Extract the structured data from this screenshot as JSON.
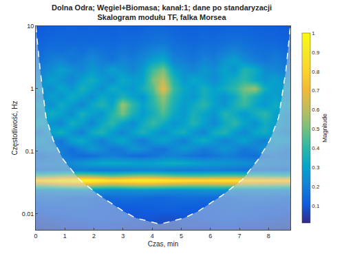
{
  "chart_data": {
    "type": "heatmap",
    "title": "Dolna Odra; Węgiel+Biomasa; kanał:1; dane po standaryzacji",
    "subtitle": "Skalogram modułu TF, falka Morsea",
    "x_label": "Czas, min",
    "y_label": "Częstotliwość, Hz",
    "log": "y",
    "grid": false,
    "xlim": [
      0,
      8.75
    ],
    "xticks": [
      0,
      1,
      2,
      3,
      4,
      5,
      6,
      7,
      8
    ],
    "ylim": [
      0.0055,
      10
    ],
    "yticks": [
      0.01,
      0.1,
      1,
      10
    ],
    "x": [
      0.175,
      0.525,
      0.875,
      1.225,
      1.575,
      1.925,
      2.275,
      2.625,
      2.975,
      3.325,
      3.675,
      4.025,
      4.375,
      4.725,
      5.075,
      5.425,
      5.775,
      6.125,
      6.475,
      6.825,
      7.175,
      7.525,
      7.875,
      8.225,
      8.575
    ],
    "y": [
      0.006,
      0.009,
      0.013,
      0.018,
      0.024,
      0.029,
      0.034,
      0.04,
      0.05,
      0.065,
      0.085,
      0.11,
      0.15,
      0.2,
      0.28,
      0.4,
      0.55,
      0.75,
      1,
      1.4,
      2,
      2.8,
      4,
      5.6,
      9.5
    ],
    "cells": [
      [
        0.07,
        0.07,
        0.08,
        0.08,
        0.08,
        0.09,
        0.09,
        0.09,
        0.08,
        0.08,
        0.08,
        0.07,
        0.07,
        0.07,
        0.08,
        0.08,
        0.08,
        0.09,
        0.09,
        0.09,
        0.08,
        0.08,
        0.08,
        0.07,
        0.07
      ],
      [
        0.09,
        0.1,
        0.1,
        0.11,
        0.11,
        0.12,
        0.12,
        0.11,
        0.11,
        0.1,
        0.1,
        0.1,
        0.09,
        0.09,
        0.1,
        0.1,
        0.11,
        0.11,
        0.12,
        0.12,
        0.11,
        0.11,
        0.1,
        0.1,
        0.09
      ],
      [
        0.12,
        0.13,
        0.13,
        0.14,
        0.14,
        0.13,
        0.12,
        0.12,
        0.11,
        0.11,
        0.12,
        0.12,
        0.13,
        0.13,
        0.12,
        0.12,
        0.11,
        0.12,
        0.13,
        0.14,
        0.14,
        0.13,
        0.13,
        0.12,
        0.12
      ],
      [
        0.16,
        0.17,
        0.16,
        0.15,
        0.15,
        0.14,
        0.14,
        0.15,
        0.16,
        0.16,
        0.15,
        0.14,
        0.14,
        0.15,
        0.16,
        0.16,
        0.15,
        0.15,
        0.14,
        0.15,
        0.16,
        0.17,
        0.16,
        0.16,
        0.15
      ],
      [
        0.24,
        0.25,
        0.26,
        0.27,
        0.27,
        0.26,
        0.25,
        0.24,
        0.24,
        0.25,
        0.26,
        0.26,
        0.25,
        0.24,
        0.24,
        0.25,
        0.26,
        0.26,
        0.25,
        0.24,
        0.24,
        0.25,
        0.25,
        0.24,
        0.24
      ],
      [
        0.55,
        0.58,
        0.62,
        0.64,
        0.65,
        0.63,
        0.6,
        0.58,
        0.6,
        0.62,
        0.63,
        0.62,
        0.6,
        0.58,
        0.57,
        0.56,
        0.56,
        0.57,
        0.58,
        0.58,
        0.57,
        0.56,
        0.55,
        0.54,
        0.53
      ],
      [
        0.86,
        0.9,
        0.95,
        0.98,
        1.0,
        0.98,
        0.93,
        0.88,
        0.9,
        0.93,
        0.95,
        0.94,
        0.92,
        0.9,
        0.88,
        0.87,
        0.86,
        0.87,
        0.88,
        0.88,
        0.87,
        0.86,
        0.85,
        0.84,
        0.83
      ],
      [
        0.5,
        0.52,
        0.55,
        0.57,
        0.58,
        0.56,
        0.53,
        0.5,
        0.52,
        0.55,
        0.56,
        0.55,
        0.53,
        0.5,
        0.49,
        0.48,
        0.48,
        0.49,
        0.5,
        0.5,
        0.49,
        0.48,
        0.47,
        0.46,
        0.45
      ],
      [
        0.17,
        0.18,
        0.19,
        0.2,
        0.2,
        0.19,
        0.18,
        0.18,
        0.19,
        0.2,
        0.21,
        0.21,
        0.2,
        0.19,
        0.18,
        0.18,
        0.19,
        0.19,
        0.18,
        0.18,
        0.17,
        0.17,
        0.17,
        0.16,
        0.16
      ],
      [
        0.2,
        0.21,
        0.22,
        0.24,
        0.27,
        0.3,
        0.32,
        0.33,
        0.32,
        0.31,
        0.3,
        0.31,
        0.33,
        0.34,
        0.33,
        0.31,
        0.29,
        0.28,
        0.27,
        0.26,
        0.25,
        0.24,
        0.23,
        0.22,
        0.21
      ],
      [
        0.16,
        0.18,
        0.2,
        0.17,
        0.15,
        0.16,
        0.19,
        0.2,
        0.18,
        0.16,
        0.15,
        0.17,
        0.2,
        0.21,
        0.19,
        0.17,
        0.16,
        0.18,
        0.2,
        0.19,
        0.17,
        0.16,
        0.18,
        0.2,
        0.18
      ],
      [
        0.22,
        0.26,
        0.2,
        0.16,
        0.22,
        0.28,
        0.24,
        0.18,
        0.2,
        0.27,
        0.25,
        0.19,
        0.17,
        0.23,
        0.28,
        0.24,
        0.19,
        0.22,
        0.27,
        0.23,
        0.18,
        0.21,
        0.26,
        0.24,
        0.2
      ],
      [
        0.28,
        0.22,
        0.18,
        0.3,
        0.34,
        0.26,
        0.2,
        0.28,
        0.33,
        0.24,
        0.19,
        0.27,
        0.32,
        0.25,
        0.2,
        0.29,
        0.35,
        0.27,
        0.21,
        0.26,
        0.31,
        0.24,
        0.2,
        0.3,
        0.28
      ],
      [
        0.2,
        0.3,
        0.36,
        0.26,
        0.2,
        0.33,
        0.38,
        0.28,
        0.22,
        0.3,
        0.37,
        0.3,
        0.24,
        0.32,
        0.36,
        0.26,
        0.22,
        0.34,
        0.38,
        0.28,
        0.23,
        0.31,
        0.35,
        0.26,
        0.22
      ],
      [
        0.32,
        0.26,
        0.22,
        0.35,
        0.3,
        0.22,
        0.32,
        0.4,
        0.3,
        0.24,
        0.33,
        0.42,
        0.34,
        0.26,
        0.3,
        0.38,
        0.3,
        0.23,
        0.33,
        0.4,
        0.31,
        0.25,
        0.34,
        0.3,
        0.26
      ],
      [
        0.25,
        0.35,
        0.3,
        0.24,
        0.36,
        0.3,
        0.26,
        0.38,
        0.5,
        0.36,
        0.28,
        0.35,
        0.45,
        0.33,
        0.27,
        0.36,
        0.31,
        0.26,
        0.38,
        0.33,
        0.27,
        0.35,
        0.4,
        0.3,
        0.26
      ],
      [
        0.3,
        0.24,
        0.34,
        0.28,
        0.22,
        0.32,
        0.38,
        0.3,
        0.55,
        0.4,
        0.3,
        0.38,
        0.5,
        0.36,
        0.28,
        0.33,
        0.4,
        0.3,
        0.26,
        0.36,
        0.42,
        0.32,
        0.27,
        0.34,
        0.3
      ],
      [
        0.22,
        0.3,
        0.26,
        0.34,
        0.3,
        0.24,
        0.33,
        0.28,
        0.36,
        0.3,
        0.26,
        0.4,
        0.55,
        0.38,
        0.3,
        0.27,
        0.35,
        0.3,
        0.25,
        0.33,
        0.45,
        0.36,
        0.28,
        0.3,
        0.26
      ],
      [
        0.28,
        0.24,
        0.32,
        0.27,
        0.36,
        0.3,
        0.25,
        0.34,
        0.3,
        0.27,
        0.35,
        0.45,
        0.68,
        0.42,
        0.32,
        0.28,
        0.36,
        0.3,
        0.34,
        0.4,
        0.5,
        0.55,
        0.34,
        0.28,
        0.3
      ],
      [
        0.24,
        0.3,
        0.26,
        0.22,
        0.3,
        0.35,
        0.28,
        0.24,
        0.33,
        0.29,
        0.3,
        0.5,
        0.6,
        0.38,
        0.27,
        0.32,
        0.28,
        0.24,
        0.3,
        0.35,
        0.4,
        0.32,
        0.26,
        0.3,
        0.25
      ],
      [
        0.2,
        0.24,
        0.3,
        0.25,
        0.22,
        0.28,
        0.24,
        0.3,
        0.26,
        0.22,
        0.28,
        0.42,
        0.5,
        0.3,
        0.25,
        0.22,
        0.27,
        0.24,
        0.3,
        0.26,
        0.38,
        0.34,
        0.24,
        0.22,
        0.2
      ],
      [
        0.17,
        0.2,
        0.22,
        0.18,
        0.2,
        0.24,
        0.2,
        0.18,
        0.22,
        0.2,
        0.23,
        0.3,
        0.34,
        0.22,
        0.2,
        0.18,
        0.22,
        0.2,
        0.26,
        0.3,
        0.24,
        0.2,
        0.18,
        0.2,
        0.17
      ],
      [
        0.15,
        0.17,
        0.16,
        0.18,
        0.16,
        0.19,
        0.17,
        0.16,
        0.18,
        0.17,
        0.19,
        0.22,
        0.24,
        0.18,
        0.17,
        0.16,
        0.18,
        0.17,
        0.2,
        0.22,
        0.19,
        0.17,
        0.16,
        0.17,
        0.15
      ],
      [
        0.13,
        0.14,
        0.15,
        0.14,
        0.15,
        0.14,
        0.15,
        0.14,
        0.15,
        0.15,
        0.16,
        0.17,
        0.18,
        0.16,
        0.15,
        0.14,
        0.15,
        0.15,
        0.16,
        0.17,
        0.16,
        0.15,
        0.14,
        0.14,
        0.13
      ],
      [
        0.11,
        0.12,
        0.12,
        0.13,
        0.12,
        0.13,
        0.12,
        0.12,
        0.13,
        0.12,
        0.13,
        0.14,
        0.14,
        0.13,
        0.12,
        0.12,
        0.13,
        0.12,
        0.13,
        0.13,
        0.13,
        0.12,
        0.12,
        0.12,
        0.11
      ]
    ],
    "colorbar": {
      "title": "Magnitude",
      "range": [
        0.01,
        1
      ],
      "ticks": [
        0.1,
        0.2,
        0.3,
        0.4,
        0.5,
        0.6,
        0.7,
        0.8,
        0.9,
        1
      ]
    },
    "series": [
      {
        "type": "line",
        "color": "#ffffff",
        "line_style": "dashed",
        "x": [
          0,
          0.15,
          0.35,
          0.6,
          0.94,
          1.5,
          2.19,
          3.0,
          3.44,
          4.27,
          5.1,
          5.6,
          6.4,
          7.1,
          7.65,
          8.05,
          8.35,
          8.6,
          8.75
        ],
        "values": [
          10,
          2,
          0.35,
          0.15,
          0.074,
          0.035,
          0.0195,
          0.011,
          0.0085,
          0.0068,
          0.0085,
          0.011,
          0.0195,
          0.035,
          0.074,
          0.15,
          0.35,
          2,
          10
        ]
      }
    ]
  }
}
